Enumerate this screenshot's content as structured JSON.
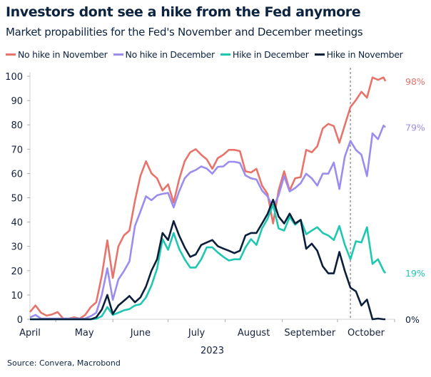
{
  "title": "Investors dont see a hike from the Fed anymore",
  "subtitle": "Market propabilities for the Fed's November and December meetings",
  "source": "Source: Convera, Macrobond",
  "chart_data": {
    "type": "line",
    "title": "Investors dont see a hike from the Fed anymore",
    "subtitle": "Market propabilities for the Fed's November and December meetings",
    "xlabel": "2023",
    "ylabel": "",
    "ylim": [
      0,
      100
    ],
    "xlim": [
      "2023-04-17",
      "2023-11-01"
    ],
    "yticks": [
      "0",
      "10",
      "20",
      "30",
      "40",
      "50",
      "60",
      "70",
      "80",
      "90",
      "100"
    ],
    "xticks": [
      "April",
      "May",
      "June",
      "July",
      "August",
      "September",
      "October"
    ],
    "grid": false,
    "legend": "top",
    "marker_line_date": "2023-10-08",
    "x": [
      "2023-04-17",
      "2023-04-20",
      "2023-04-23",
      "2023-04-26",
      "2023-04-29",
      "2023-05-02",
      "2023-05-05",
      "2023-05-08",
      "2023-05-11",
      "2023-05-14",
      "2023-05-17",
      "2023-05-20",
      "2023-05-23",
      "2023-05-26",
      "2023-05-29",
      "2023-06-01",
      "2023-06-04",
      "2023-06-07",
      "2023-06-10",
      "2023-06-13",
      "2023-06-16",
      "2023-06-19",
      "2023-06-22",
      "2023-06-25",
      "2023-06-28",
      "2023-07-01",
      "2023-07-04",
      "2023-07-07",
      "2023-07-10",
      "2023-07-13",
      "2023-07-16",
      "2023-07-19",
      "2023-07-22",
      "2023-07-25",
      "2023-07-28",
      "2023-07-31",
      "2023-08-03",
      "2023-08-06",
      "2023-08-09",
      "2023-08-12",
      "2023-08-15",
      "2023-08-18",
      "2023-08-21",
      "2023-08-24",
      "2023-08-27",
      "2023-08-30",
      "2023-09-02",
      "2023-09-05",
      "2023-09-08",
      "2023-09-11",
      "2023-09-14",
      "2023-09-17",
      "2023-09-20",
      "2023-09-23",
      "2023-09-26",
      "2023-09-29",
      "2023-10-02",
      "2023-10-05",
      "2023-10-08",
      "2023-10-11",
      "2023-10-14",
      "2023-10-17",
      "2023-10-20",
      "2023-10-23",
      "2023-10-26",
      "2023-10-27"
    ],
    "series": [
      {
        "name": "No hike in November",
        "color": "#e8736a",
        "end_label": "98%",
        "values": [
          3,
          5.7,
          2.7,
          1.5,
          2,
          3,
          0.3,
          0.3,
          0.8,
          0.3,
          1.8,
          5,
          7,
          18,
          32.5,
          17,
          30,
          34.5,
          36.5,
          48.7,
          59,
          65,
          60,
          58,
          53,
          55.5,
          48,
          57.5,
          65,
          68.7,
          70,
          67.7,
          65.8,
          61.9,
          66.3,
          67.7,
          69.7,
          69.7,
          69.2,
          60.9,
          60.4,
          61.9,
          55,
          51.6,
          39.4,
          53,
          60.9,
          53,
          58,
          58.5,
          69.7,
          68.7,
          71.2,
          78.5,
          80.4,
          79.5,
          72.6,
          80,
          87.3,
          90.2,
          93.6,
          91.2,
          99.5,
          98.5,
          99.5,
          98
        ]
      },
      {
        "name": "No hike in December",
        "color": "#9b8cf0",
        "end_label": "79%",
        "values": [
          0.8,
          1.8,
          0.3,
          0.3,
          0.3,
          0.3,
          0.3,
          0.3,
          0.3,
          0.3,
          0.3,
          1.3,
          2.7,
          10,
          21,
          8,
          16.4,
          19.8,
          23.8,
          38.4,
          44.3,
          50.6,
          49,
          51,
          51.6,
          52,
          46,
          52.6,
          58,
          60.4,
          61.4,
          62.9,
          62,
          59.9,
          62.7,
          62.9,
          64.8,
          64.8,
          64.3,
          59.2,
          58,
          57.5,
          53,
          50.6,
          46,
          51,
          58.9,
          52.6,
          54,
          56,
          59.9,
          58,
          55,
          59.9,
          59.9,
          64.5,
          53.6,
          67,
          73.4,
          69.7,
          67.7,
          58.9,
          76.5,
          74.1,
          79.7,
          79
        ]
      },
      {
        "name": "Hike in December",
        "color": "#1ec8b0",
        "end_label": "19%",
        "values": [
          0,
          0,
          0,
          0,
          0,
          0,
          0,
          0,
          0,
          0,
          0,
          0,
          0.2,
          1.3,
          5,
          1.8,
          2.7,
          3.7,
          4.2,
          5.7,
          6.2,
          9,
          14,
          20.8,
          33,
          28.6,
          35.5,
          29,
          24.7,
          21.3,
          21.3,
          24.7,
          29.6,
          29.6,
          27.5,
          25.7,
          24.2,
          24.7,
          24.7,
          29.6,
          33,
          30.6,
          37.4,
          41.3,
          47.2,
          37.4,
          36.5,
          42.1,
          38.9,
          40.9,
          35,
          36.5,
          37.9,
          35.5,
          34.5,
          32.6,
          38.4,
          30.6,
          24.7,
          32.1,
          31.6,
          37.9,
          22.8,
          24.7,
          20,
          19
        ]
      },
      {
        "name": "Hike in November",
        "color": "#0b1f3a",
        "end_label": "0%",
        "values": [
          0,
          0,
          0,
          0,
          0,
          0,
          0,
          0,
          0,
          0,
          0,
          0,
          0.8,
          4,
          10,
          2.2,
          5.7,
          7.6,
          9.6,
          7,
          9,
          13.5,
          20,
          24.7,
          35.5,
          32.6,
          40.4,
          34.5,
          29.6,
          25.7,
          26.7,
          30.6,
          31.6,
          32.6,
          30.1,
          29.1,
          28.2,
          27.2,
          28.2,
          34.5,
          35.5,
          35.5,
          39.4,
          43.3,
          49.2,
          42.3,
          39.4,
          43.5,
          39.4,
          40.9,
          29,
          31.1,
          28.2,
          21.8,
          18.9,
          18.9,
          27.7,
          19.8,
          13,
          11.5,
          5.7,
          8.1,
          0,
          0.3,
          0,
          0
        ]
      }
    ]
  }
}
